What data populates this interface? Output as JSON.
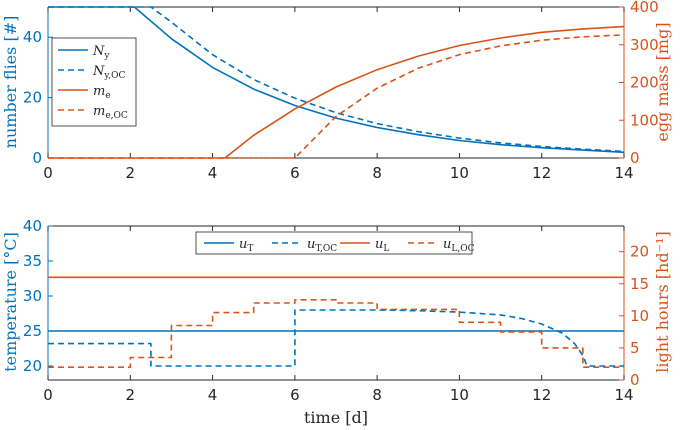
{
  "chart_data": [
    {
      "type": "line",
      "x_axis": {
        "label": "",
        "range": [
          0,
          14
        ],
        "ticks": [
          "0",
          "2",
          "4",
          "6",
          "8",
          "10",
          "12",
          "14"
        ]
      },
      "y_left": {
        "label": "number flies [#]",
        "range": [
          0,
          50
        ],
        "ticks": [
          "0",
          "20",
          "40"
        ]
      },
      "y_right": {
        "label": "egg mass [mg]",
        "range": [
          0,
          400
        ],
        "ticks": [
          "0",
          "100",
          "200",
          "300",
          "400"
        ]
      },
      "legend_position": "top-left",
      "series": [
        {
          "name": "N_y",
          "legend": "N",
          "legend_sub": "y",
          "axis": "left",
          "style": "solid",
          "color": "#0072BD",
          "x": [
            0,
            2.1,
            3,
            4,
            5,
            6,
            7,
            8,
            9,
            10,
            11,
            12,
            13,
            14
          ],
          "y": [
            50,
            50,
            39.5,
            30,
            22.8,
            17.4,
            13.2,
            10.1,
            7.7,
            5.8,
            4.4,
            3.4,
            2.6,
            1.9
          ]
        },
        {
          "name": "N_y,OC",
          "legend": "N",
          "legend_sub": "y,OC",
          "axis": "left",
          "style": "dashed",
          "color": "#0072BD",
          "x": [
            0,
            2.5,
            3,
            4,
            5,
            6,
            7,
            8,
            9,
            10,
            11,
            12,
            13,
            14
          ],
          "y": [
            50,
            50,
            45,
            34.2,
            26,
            19.8,
            15,
            11.4,
            8.7,
            6.6,
            5,
            3.8,
            2.9,
            2.2
          ]
        },
        {
          "name": "m_e",
          "legend": "m",
          "legend_sub": "e",
          "axis": "right",
          "style": "solid",
          "color": "#D95319",
          "x": [
            0,
            4.3,
            5,
            6,
            7,
            8,
            9,
            10,
            11,
            12,
            13,
            14
          ],
          "y": [
            0,
            0,
            60,
            130,
            188,
            234,
            270,
            298,
            318,
            333,
            342,
            348
          ]
        },
        {
          "name": "m_e,OC",
          "legend": "m",
          "legend_sub": "e,OC",
          "axis": "right",
          "style": "dashed",
          "color": "#D95319",
          "x": [
            0,
            6,
            7,
            8,
            9,
            10,
            11,
            12,
            13,
            14
          ],
          "y": [
            0,
            0,
            110,
            185,
            238,
            274,
            297,
            312,
            321,
            326
          ]
        }
      ]
    },
    {
      "type": "line",
      "x_axis": {
        "label": "time [d]",
        "range": [
          0,
          14
        ],
        "ticks": [
          "0",
          "2",
          "4",
          "6",
          "8",
          "10",
          "12",
          "14"
        ]
      },
      "y_left": {
        "label": "temperature [°C]",
        "range": [
          18,
          40
        ],
        "ticks": [
          "20",
          "25",
          "30",
          "35",
          "40"
        ]
      },
      "y_right": {
        "label": "light hours [hd⁻¹]",
        "range": [
          0,
          24
        ],
        "ticks": [
          "0",
          "5",
          "10",
          "15",
          "20"
        ]
      },
      "legend_position": "top-center",
      "series": [
        {
          "name": "u_T",
          "legend": "u",
          "legend_sub": "T",
          "axis": "left",
          "style": "solid",
          "color": "#0072BD",
          "x": [
            0,
            14
          ],
          "y": [
            25,
            25
          ]
        },
        {
          "name": "u_T,OC",
          "legend": "u",
          "legend_sub": "T,OC",
          "axis": "left",
          "style": "dashed",
          "color": "#0072BD",
          "x": [
            0,
            2.5,
            2.5,
            6,
            6,
            8,
            9,
            10,
            11,
            11.5,
            12,
            12.5,
            12.8,
            13.0,
            13.1,
            14
          ],
          "y": [
            23.2,
            23.2,
            20,
            20,
            28,
            28,
            27.9,
            27.7,
            27.3,
            26.8,
            26,
            24.7,
            23.2,
            21.5,
            20,
            20
          ]
        },
        {
          "name": "u_L",
          "legend": "u",
          "legend_sub": "L",
          "axis": "right",
          "style": "solid",
          "color": "#D95319",
          "x": [
            0,
            14
          ],
          "y": [
            16,
            16
          ]
        },
        {
          "name": "u_L,OC",
          "legend": "u",
          "legend_sub": "L,OC",
          "axis": "right",
          "style": "dashed",
          "color": "#D95319",
          "x": [
            0,
            2,
            2,
            3,
            3,
            4,
            4,
            5,
            5,
            6,
            6,
            7,
            7,
            8,
            8,
            10,
            10,
            11,
            11,
            12,
            12,
            13,
            13,
            14
          ],
          "y": [
            2,
            2,
            3.5,
            3.5,
            8.5,
            8.5,
            10.5,
            10.5,
            12,
            12,
            12.5,
            12.5,
            12,
            12,
            11,
            11,
            9,
            9,
            7.5,
            7.5,
            5,
            5,
            2,
            2
          ]
        }
      ]
    }
  ]
}
